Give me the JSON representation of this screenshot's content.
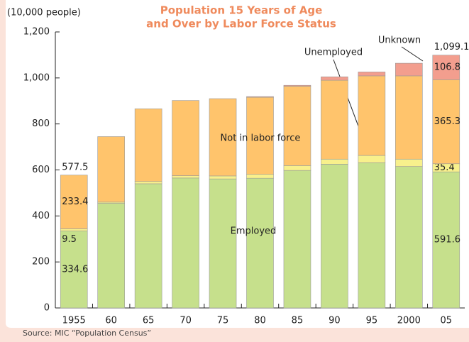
{
  "chart_data": {
    "type": "stacked_bar",
    "title": [
      "Population 15 Years of Age",
      "and Over by Labor Force Status"
    ],
    "y_axis_label": "(10,000 people)",
    "source": "Source:  MIC “Population Census”",
    "categories": [
      "1955",
      "60",
      "65",
      "70",
      "75",
      "80",
      "85",
      "90",
      "95",
      "2000",
      "05"
    ],
    "series": [
      {
        "name": "Employed",
        "color": "#c6e08c",
        "values": [
          334.6,
          455,
          540,
          565,
          561,
          564,
          598,
          625,
          631,
          615,
          591.6
        ],
        "value_labels": [
          "334.6",
          null,
          null,
          null,
          null,
          null,
          null,
          null,
          null,
          null,
          "591.6"
        ]
      },
      {
        "name": "Unemployed",
        "color": "#f8f08c",
        "values": [
          9.5,
          5,
          10,
          10,
          13,
          17,
          21,
          22,
          32,
          32,
          35.4
        ],
        "value_labels": [
          "9.5",
          null,
          null,
          null,
          null,
          null,
          null,
          null,
          null,
          null,
          "35.4"
        ]
      },
      {
        "name": "Not in labor force",
        "color": "#ffc46c",
        "values": [
          233.4,
          285,
          316,
          327,
          336,
          335,
          345,
          343,
          346,
          362,
          365.3
        ],
        "value_labels": [
          "233.4",
          null,
          null,
          null,
          null,
          null,
          null,
          null,
          null,
          null,
          "365.3"
        ]
      },
      {
        "name": "Unknown",
        "color": "#f39e8e",
        "values": [
          0,
          0,
          0,
          0,
          0,
          3,
          4,
          15,
          17,
          55,
          106.8
        ],
        "value_labels": [
          null,
          null,
          null,
          null,
          null,
          null,
          null,
          null,
          null,
          null,
          "106.8"
        ]
      }
    ],
    "totals": [
      577.5,
      null,
      null,
      null,
      null,
      null,
      null,
      null,
      null,
      null,
      1099.1
    ],
    "total_labels": [
      "577.5",
      null,
      null,
      null,
      null,
      null,
      null,
      null,
      null,
      null,
      "1,099.1"
    ],
    "ylim": [
      0,
      1200
    ],
    "yticks": [
      0,
      200,
      400,
      600,
      800,
      {
        "value": 1000,
        "label": "1,000"
      },
      {
        "value": 1200,
        "label": "1,200"
      }
    ]
  }
}
